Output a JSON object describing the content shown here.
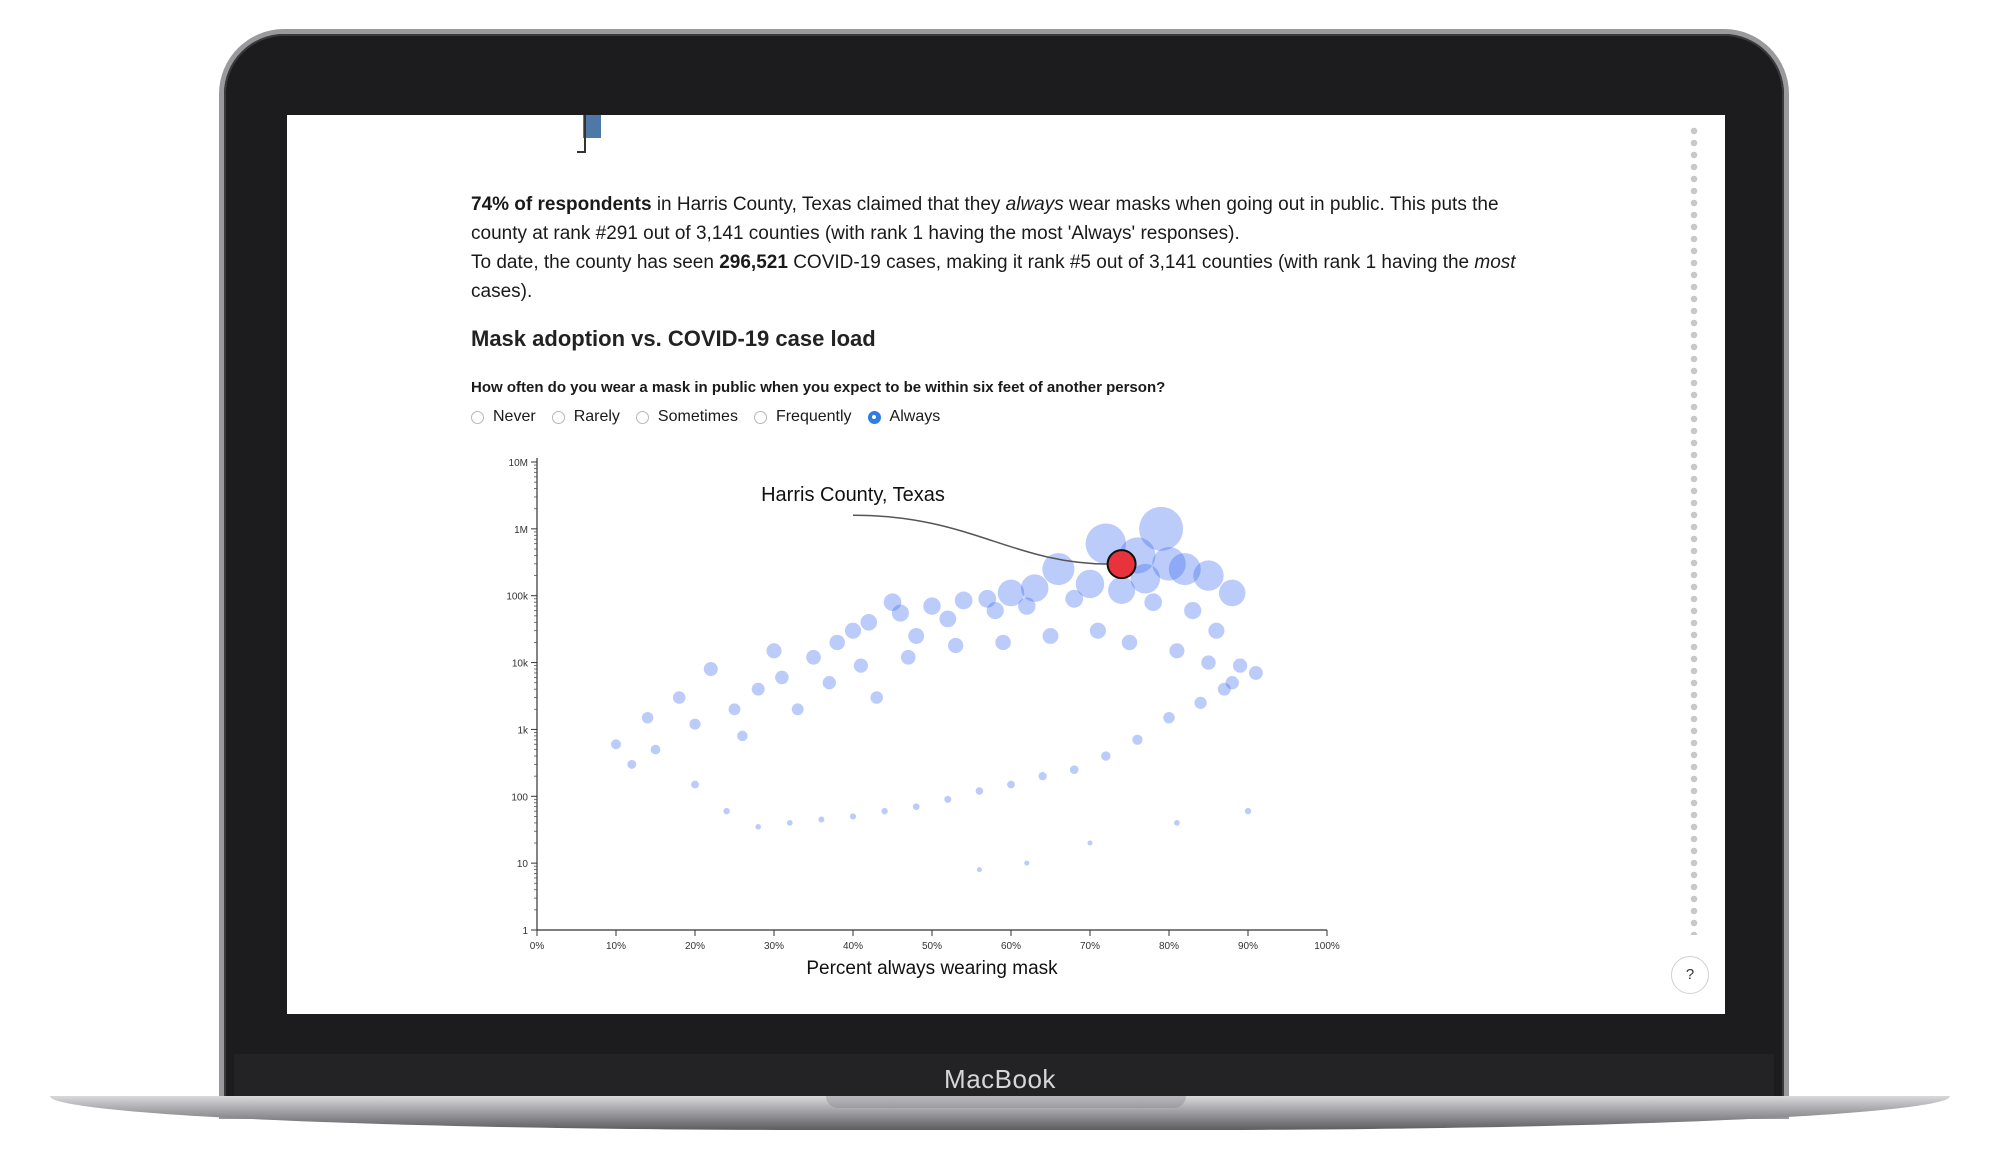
{
  "device": {
    "brand": "MacBook"
  },
  "summary": {
    "respondents_bold": "74% of respondents",
    "p1_a": " in Harris County, Texas claimed that they ",
    "p1_em": "always",
    "p1_b": " wear masks when going out in public. This puts the county at rank #291 out of 3,141 counties (with rank 1 having the most 'Always' responses).",
    "p2_a": "To date, the county has seen ",
    "p2_bold": "296,521",
    "p2_b": " COVID-19 cases, making it rank #5 out of 3,141 counties (with rank 1 having the ",
    "p2_em": "most",
    "p2_c": " cases)."
  },
  "section_title": "Mask adoption vs. COVID-19 case load",
  "question": "How often do you wear a mask in public when you expect to be within six feet of another person?",
  "options": [
    {
      "label": "Never",
      "selected": false
    },
    {
      "label": "Rarely",
      "selected": false
    },
    {
      "label": "Sometimes",
      "selected": false
    },
    {
      "label": "Frequently",
      "selected": false
    },
    {
      "label": "Always",
      "selected": true
    }
  ],
  "help_label": "?",
  "chart_data": {
    "type": "scatter",
    "title": "",
    "xlabel": "Percent always wearing mask",
    "ylabel": "",
    "xlim": [
      0,
      100
    ],
    "ylim": [
      1,
      10000000
    ],
    "y_scale": "log",
    "x_ticks": [
      "0%",
      "10%",
      "20%",
      "30%",
      "40%",
      "50%",
      "60%",
      "70%",
      "80%",
      "90%",
      "100%"
    ],
    "y_ticks": [
      "1",
      "10",
      "100",
      "1k",
      "10k",
      "100k",
      "1M",
      "10M"
    ],
    "point_color": "#2f5ff0",
    "highlight_color": "#e8323c",
    "highlight": {
      "label": "Harris County, Texas",
      "x": 74,
      "y": 296521
    },
    "series": [
      {
        "points": [
          [
            79,
            1000000
          ],
          [
            72,
            600000
          ],
          [
            76,
            400000
          ],
          [
            80,
            300000
          ],
          [
            82,
            250000
          ],
          [
            88,
            110000
          ],
          [
            70,
            150000
          ],
          [
            77,
            180000
          ],
          [
            85,
            200000
          ],
          [
            66,
            250000
          ],
          [
            63,
            130000
          ],
          [
            60,
            110000
          ],
          [
            57,
            90000
          ],
          [
            54,
            85000
          ],
          [
            50,
            70000
          ],
          [
            46,
            55000
          ],
          [
            45,
            80000
          ],
          [
            40,
            30000
          ],
          [
            38,
            20000
          ],
          [
            35,
            12000
          ],
          [
            31,
            6000
          ],
          [
            28,
            4000
          ],
          [
            25,
            2000
          ],
          [
            20,
            1200
          ],
          [
            15,
            500
          ],
          [
            12,
            300
          ],
          [
            10,
            600
          ],
          [
            14,
            1500
          ],
          [
            18,
            3000
          ],
          [
            22,
            8000
          ],
          [
            30,
            15000
          ],
          [
            42,
            40000
          ],
          [
            48,
            25000
          ],
          [
            52,
            45000
          ],
          [
            58,
            60000
          ],
          [
            62,
            70000
          ],
          [
            68,
            90000
          ],
          [
            74,
            120000
          ],
          [
            78,
            80000
          ],
          [
            83,
            60000
          ],
          [
            86,
            30000
          ],
          [
            89,
            9000
          ],
          [
            91,
            7000
          ],
          [
            87,
            4000
          ],
          [
            84,
            2500
          ],
          [
            80,
            1500
          ],
          [
            76,
            700
          ],
          [
            72,
            400
          ],
          [
            68,
            250
          ],
          [
            64,
            200
          ],
          [
            60,
            150
          ],
          [
            56,
            120
          ],
          [
            52,
            90
          ],
          [
            48,
            70
          ],
          [
            44,
            60
          ],
          [
            40,
            50
          ],
          [
            36,
            45
          ],
          [
            32,
            40
          ],
          [
            28,
            35
          ],
          [
            24,
            60
          ],
          [
            20,
            150
          ],
          [
            26,
            800
          ],
          [
            33,
            2000
          ],
          [
            37,
            5000
          ],
          [
            41,
            9000
          ],
          [
            47,
            12000
          ],
          [
            53,
            18000
          ],
          [
            59,
            20000
          ],
          [
            65,
            25000
          ],
          [
            71,
            30000
          ],
          [
            75,
            20000
          ],
          [
            81,
            15000
          ],
          [
            85,
            10000
          ],
          [
            88,
            5000
          ],
          [
            56,
            8
          ],
          [
            62,
            10
          ],
          [
            70,
            20
          ],
          [
            81,
            40
          ],
          [
            90,
            60
          ],
          [
            43,
            3000
          ]
        ]
      }
    ]
  }
}
